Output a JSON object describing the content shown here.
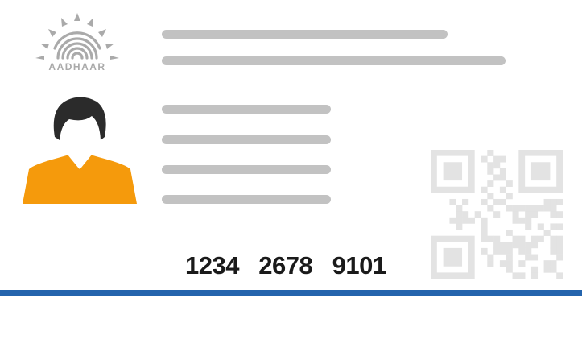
{
  "logo": {
    "text": "AADHAAR",
    "icon": "aadhaar-fingerprint-sun-icon",
    "color": "#aaaaaa"
  },
  "photo": {
    "icon": "person-silhouette-icon",
    "hair_color": "#2b2b2b",
    "shirt_color": "#f59a0c"
  },
  "placeholder_color": "#c2c2c2",
  "qr_code": {
    "icon": "qr-code-icon",
    "color": "#e3e3e3"
  },
  "aadhaar_number": "1234   2678   9101",
  "accent_rule_color": "#2464ad"
}
